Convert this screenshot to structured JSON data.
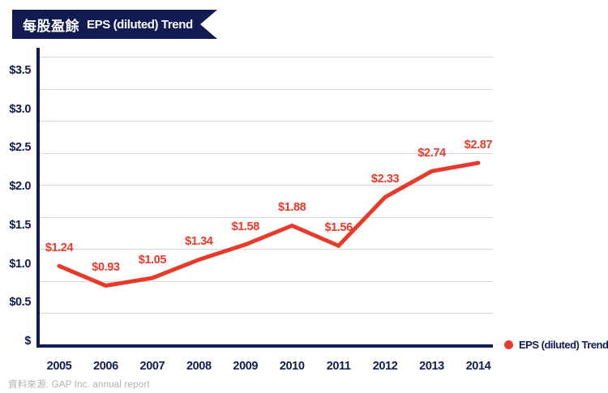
{
  "banner": {
    "title_zh": "每股盈餘",
    "title_en": "EPS (diluted) Trend"
  },
  "colors": {
    "navy": "#121C52",
    "red": "#E83A2B",
    "grid": "#D9D9D9",
    "source_text": "#B0B0B0",
    "banner_text": "#FFFFFF",
    "background": "#FFFFFF"
  },
  "chart_data": {
    "type": "line",
    "title": "每股盈餘 EPS (diluted) Trend",
    "categories": [
      "2005",
      "2006",
      "2007",
      "2008",
      "2009",
      "2010",
      "2011",
      "2012",
      "2013",
      "2014"
    ],
    "series": [
      {
        "name": "EPS (diluted) Trend",
        "values": [
          1.24,
          0.93,
          1.05,
          1.34,
          1.58,
          1.88,
          1.56,
          2.33,
          2.74,
          2.87
        ],
        "point_labels": [
          "$1.24",
          "$0.93",
          "$1.05",
          "$1.34",
          "$1.58",
          "$1.88",
          "$1.56",
          "$2.33",
          "$2.74",
          "$2.87"
        ],
        "color": "#E83A2B"
      }
    ],
    "y_ticks": [
      "$3.5",
      "$3.0",
      "$2.5",
      "$2.0",
      "$1.5",
      "$1.0",
      "$0.5",
      "$"
    ],
    "ylim": [
      0,
      4.5
    ],
    "grid": true,
    "legend_position": "bottom-right"
  },
  "legend": {
    "label": "EPS (diluted) Trend",
    "marker_color": "#E83A2B"
  },
  "source": "資料來源: GAP Inc. annual report"
}
